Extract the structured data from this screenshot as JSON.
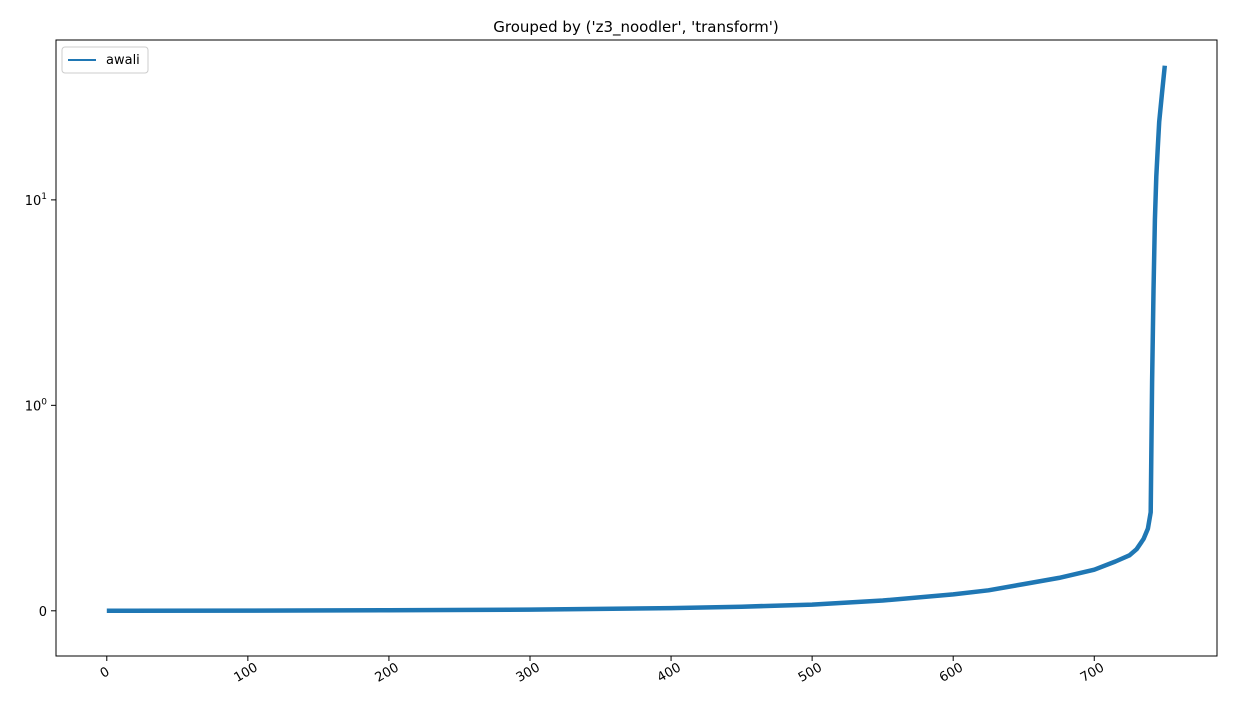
{
  "chart_data": {
    "type": "line",
    "title": "Grouped by ('z3_noodler', 'transform')",
    "xlabel": "",
    "ylabel": "",
    "xlim": [
      -36,
      787
    ],
    "yscale": "symlog",
    "ylim": [
      -0.22,
      60
    ],
    "grid": false,
    "legend_position": "top-left",
    "x_ticks": [
      {
        "value": 0,
        "label": "0"
      },
      {
        "value": 100,
        "label": "100"
      },
      {
        "value": 200,
        "label": "200"
      },
      {
        "value": 300,
        "label": "300"
      },
      {
        "value": 400,
        "label": "400"
      },
      {
        "value": 500,
        "label": "500"
      },
      {
        "value": 600,
        "label": "600"
      },
      {
        "value": 700,
        "label": "700"
      }
    ],
    "y_ticks": [
      {
        "value": 0,
        "label": "0",
        "mantissa": "",
        "exponent": ""
      },
      {
        "value": 1,
        "label": "",
        "mantissa": "10",
        "exponent": "0"
      },
      {
        "value": 10,
        "label": "",
        "mantissa": "10",
        "exponent": "1"
      }
    ],
    "series": [
      {
        "name": "awali",
        "color": "#1f77b4",
        "x": [
          0,
          100,
          200,
          300,
          400,
          450,
          500,
          550,
          600,
          625,
          650,
          675,
          700,
          715,
          725,
          730,
          735,
          738,
          740,
          741,
          742,
          743,
          744,
          745,
          746,
          748,
          750
        ],
        "y": [
          0,
          0.001,
          0.003,
          0.006,
          0.013,
          0.02,
          0.03,
          0.05,
          0.08,
          0.1,
          0.13,
          0.16,
          0.2,
          0.24,
          0.27,
          0.3,
          0.35,
          0.4,
          0.48,
          1.3,
          3.6,
          8.0,
          13.0,
          18.0,
          24.0,
          33.0,
          45.0
        ]
      }
    ]
  }
}
